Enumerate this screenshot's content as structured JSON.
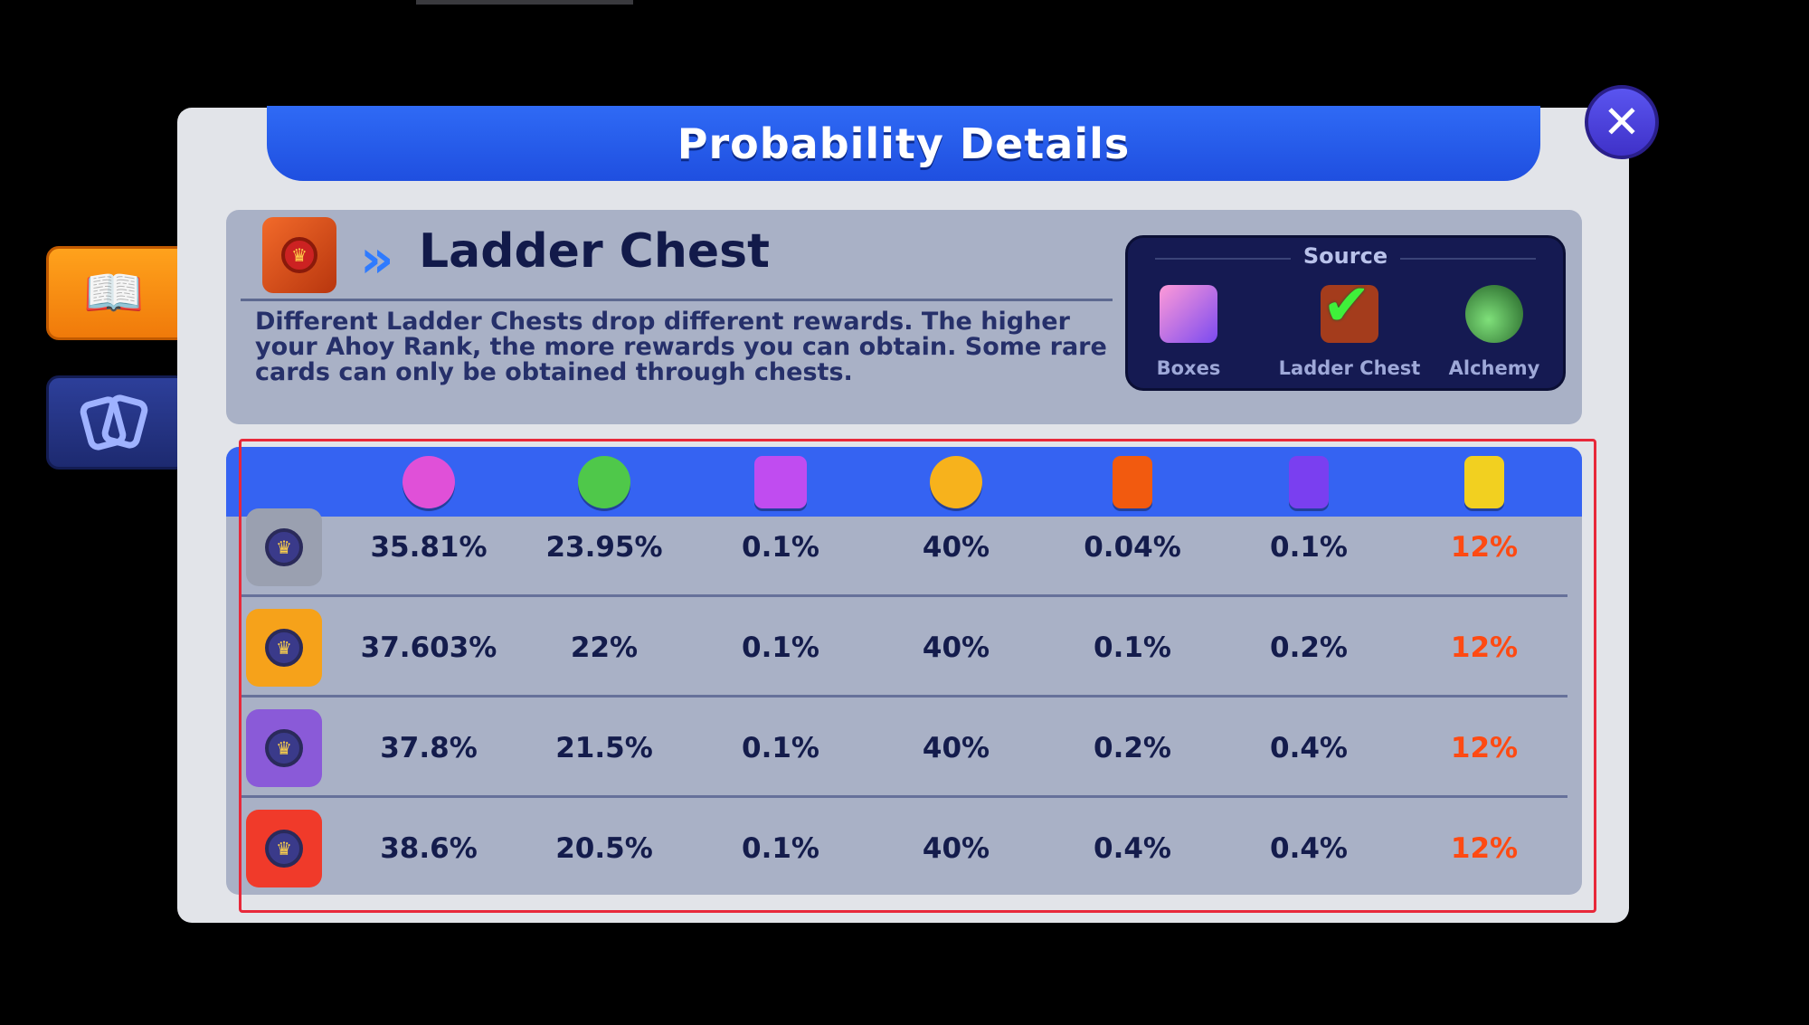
{
  "title": "Probability Details",
  "close_label": "✕",
  "side_tabs": [
    {
      "name": "book",
      "icon": "📖",
      "active": true
    },
    {
      "name": "cards",
      "icon": "🂠",
      "active": false
    }
  ],
  "info": {
    "title": "Ladder Chest",
    "chevron": "»",
    "description": "Different Ladder Chests drop different rewards. The higher your Ahoy Rank, the more rewards you can obtain. Some rare cards can only be obtained through chests."
  },
  "source": {
    "title": "Source",
    "items": [
      {
        "label": "Boxes",
        "icon": "box-icon",
        "selected": false
      },
      {
        "label": "Ladder Chest",
        "icon": "chest-icon",
        "selected": true
      },
      {
        "label": "Alchemy",
        "icon": "potion-icon",
        "selected": false
      }
    ]
  },
  "table": {
    "columns": [
      {
        "icon": "shell-icon",
        "color": "#e050d8"
      },
      {
        "icon": "clover-icon",
        "color": "#4fc84a"
      },
      {
        "icon": "box-icon",
        "color": "#c04cf0"
      },
      {
        "icon": "coin-icon",
        "color": "#f7b21c"
      },
      {
        "icon": "orange-card-icon",
        "color": "#f25a0f"
      },
      {
        "icon": "purple-card-icon",
        "color": "#7a3ff0"
      },
      {
        "icon": "gold-card-icon",
        "color": "#f2d020"
      }
    ],
    "highlight_color": "#ff4a12",
    "rows": [
      {
        "chest": "silver-chest",
        "color": "#9aa0b0",
        "values": [
          "35.81%",
          "23.95%",
          "0.1%",
          "40%",
          "0.04%",
          "0.1%",
          "12%"
        ]
      },
      {
        "chest": "gold-chest",
        "color": "#f6a21a",
        "values": [
          "37.603%",
          "22%",
          "0.1%",
          "40%",
          "0.1%",
          "0.2%",
          "12%"
        ]
      },
      {
        "chest": "purple-chest",
        "color": "#8a5ad8",
        "values": [
          "37.8%",
          "21.5%",
          "0.1%",
          "40%",
          "0.2%",
          "0.4%",
          "12%"
        ]
      },
      {
        "chest": "red-chest",
        "color": "#f03a2a",
        "values": [
          "38.6%",
          "20.5%",
          "0.1%",
          "40%",
          "0.4%",
          "0.4%",
          "12%"
        ]
      }
    ]
  }
}
